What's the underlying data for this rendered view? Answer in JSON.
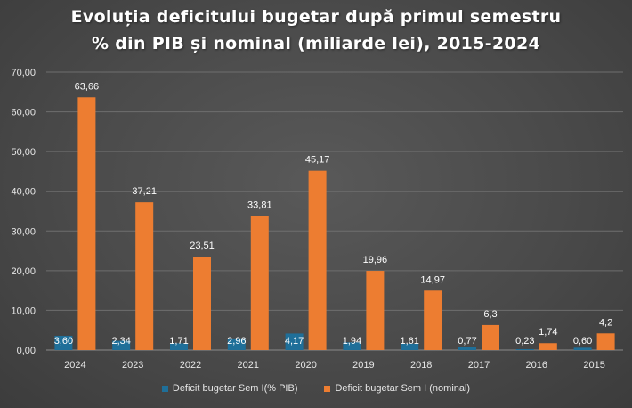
{
  "title_line1": "Evoluția deficitului bugetar după primul semestru",
  "title_line2": "% din PIB și nominal (miliarde lei), 2015-2024",
  "colors": {
    "pib": "#1f6f99",
    "nominal": "#ed7d31",
    "grid": "#6e6e6e",
    "text": "#e6e6e6"
  },
  "chart_data": {
    "type": "bar",
    "title": "Evoluția deficitului bugetar după primul semestru % din PIB și nominal (miliarde lei), 2015-2024",
    "categories": [
      "2024",
      "2023",
      "2022",
      "2021",
      "2020",
      "2019",
      "2018",
      "2017",
      "2016",
      "2015"
    ],
    "series": [
      {
        "name": "Deficit bugetar Sem I(% PIB)",
        "values": [
          3.6,
          2.34,
          1.71,
          2.96,
          4.17,
          1.94,
          1.61,
          0.77,
          0.23,
          0.6
        ],
        "labels": [
          "3,60",
          "2,34",
          "1,71",
          "2,96",
          "4,17",
          "1,94",
          "1,61",
          "0,77",
          "0,23",
          "0,60"
        ]
      },
      {
        "name": "Deficit bugetar Sem I (nominal)",
        "values": [
          63.66,
          37.21,
          23.51,
          33.81,
          45.17,
          19.96,
          14.97,
          6.3,
          1.74,
          4.2
        ],
        "labels": [
          "63,66",
          "37,21",
          "23,51",
          "33,81",
          "45,17",
          "19,96",
          "14,97",
          "6,3",
          "1,74",
          "4,2"
        ]
      }
    ],
    "ylim": [
      0,
      70
    ],
    "yticks": [
      "0,00",
      "10,00",
      "20,00",
      "30,00",
      "40,00",
      "50,00",
      "60,00",
      "70,00"
    ],
    "grid": true,
    "legend": "bottom"
  }
}
